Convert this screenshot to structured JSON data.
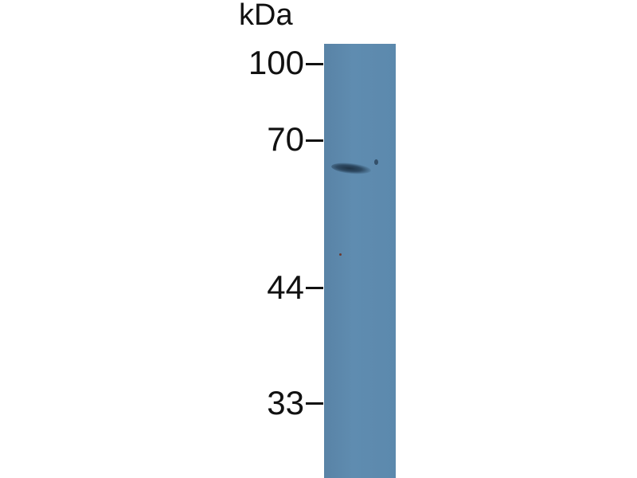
{
  "blot": {
    "unit_label": "kDa",
    "markers": [
      "100",
      "70",
      "44",
      "33"
    ],
    "lane_color": "#5c89ad",
    "band_color": "#2a4259"
  }
}
